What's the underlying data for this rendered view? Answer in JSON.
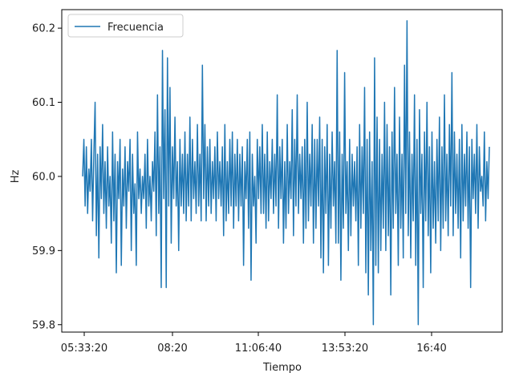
{
  "chart_data": {
    "type": "line",
    "title": "",
    "xlabel": "Tiempo",
    "ylabel": "Hz",
    "ylim": [
      59.79,
      60.225
    ],
    "x_tick_labels": [
      "05:33:20",
      "08:20",
      "11:06:40",
      "13:53:20",
      "16:40"
    ],
    "y_ticks": [
      59.8,
      59.9,
      60.0,
      60.1,
      60.2
    ],
    "y_tick_labels": [
      "59.8",
      "59.9",
      "60.0",
      "60.1",
      "60.2"
    ],
    "legend": "top-left",
    "grid": false,
    "series": [
      {
        "name": "Frecuencia",
        "color": "#1f77b4",
        "values": [
          60.0,
          60.05,
          59.96,
          60.04,
          59.95,
          60.01,
          59.98,
          60.05,
          59.94,
          60.03,
          60.1,
          59.92,
          60.03,
          59.89,
          60.04,
          59.97,
          60.07,
          59.95,
          60.02,
          59.93,
          60.04,
          59.96,
          60.0,
          59.91,
          60.06,
          59.94,
          60.03,
          59.87,
          60.02,
          59.97,
          60.05,
          59.88,
          60.01,
          59.96,
          60.04,
          59.93,
          60.02,
          59.98,
          60.05,
          59.9,
          60.03,
          59.95,
          59.99,
          59.88,
          60.06,
          59.97,
          60.01,
          59.95,
          60.0,
          59.97,
          60.03,
          59.93,
          60.05,
          59.96,
          60.0,
          59.94,
          60.02,
          59.98,
          60.06,
          59.92,
          60.11,
          59.95,
          60.04,
          59.85,
          60.17,
          59.97,
          60.09,
          59.85,
          60.16,
          59.96,
          60.12,
          59.91,
          60.04,
          59.97,
          60.08,
          59.96,
          60.02,
          59.9,
          60.05,
          59.96,
          60.03,
          59.95,
          60.06,
          59.94,
          60.03,
          59.96,
          60.08,
          59.94,
          60.05,
          59.97,
          60.02,
          59.95,
          60.07,
          59.96,
          60.03,
          59.94,
          60.15,
          59.97,
          60.07,
          59.94,
          60.04,
          59.96,
          60.05,
          59.95,
          60.02,
          59.97,
          60.04,
          59.94,
          60.06,
          59.97,
          60.02,
          59.96,
          60.04,
          59.92,
          60.07,
          59.94,
          60.02,
          59.95,
          60.05,
          59.96,
          60.06,
          59.93,
          60.03,
          59.96,
          60.05,
          59.94,
          60.03,
          59.96,
          60.04,
          59.88,
          60.02,
          59.97,
          60.05,
          59.93,
          60.06,
          59.86,
          60.03,
          59.96,
          60.0,
          59.91,
          60.05,
          59.97,
          60.04,
          59.95,
          60.07,
          59.95,
          60.03,
          59.93,
          60.06,
          59.94,
          60.02,
          59.97,
          60.05,
          59.95,
          60.03,
          59.96,
          60.11,
          59.93,
          60.04,
          59.97,
          60.05,
          59.91,
          60.02,
          59.93,
          60.07,
          59.95,
          60.02,
          59.97,
          60.09,
          59.92,
          60.05,
          59.96,
          60.11,
          59.95,
          60.03,
          59.97,
          60.04,
          59.91,
          60.05,
          59.93,
          60.1,
          59.94,
          60.03,
          59.96,
          60.07,
          59.91,
          60.05,
          59.93,
          60.05,
          59.96,
          60.08,
          59.89,
          60.05,
          59.87,
          60.04,
          59.95,
          60.07,
          59.88,
          60.03,
          59.93,
          60.06,
          59.96,
          60.02,
          59.91,
          60.17,
          59.91,
          60.06,
          59.86,
          60.03,
          59.93,
          60.14,
          59.95,
          60.02,
          59.9,
          60.05,
          59.92,
          60.03,
          59.96,
          60.02,
          59.94,
          60.04,
          59.88,
          60.07,
          59.93,
          60.04,
          59.95,
          60.12,
          59.87,
          60.05,
          59.84,
          60.06,
          59.9,
          60.02,
          59.8,
          60.16,
          59.88,
          60.08,
          59.87,
          60.05,
          59.9,
          60.03,
          59.93,
          60.1,
          59.9,
          60.07,
          59.92,
          60.04,
          59.84,
          60.06,
          59.93,
          60.12,
          59.95,
          60.03,
          59.88,
          60.08,
          59.93,
          60.03,
          59.89,
          60.15,
          59.95,
          60.21,
          59.92,
          60.06,
          59.89,
          60.03,
          59.94,
          60.11,
          59.88,
          60.05,
          59.8,
          60.09,
          59.95,
          60.03,
          59.85,
          60.06,
          59.94,
          60.1,
          59.92,
          60.04,
          59.87,
          60.06,
          59.93,
          60.02,
          59.91,
          60.05,
          59.94,
          60.08,
          59.9,
          60.04,
          59.93,
          60.11,
          59.94,
          60.03,
          59.92,
          60.07,
          59.96,
          60.14,
          59.92,
          60.06,
          59.95,
          60.03,
          59.93,
          60.05,
          59.89,
          60.07,
          59.94,
          60.03,
          59.96,
          60.06,
          59.93,
          60.04,
          59.85,
          60.05,
          59.97,
          60.03,
          59.95,
          60.07,
          59.93,
          60.04,
          59.98,
          60.0,
          59.96,
          60.06,
          59.94,
          60.02,
          59.97,
          60.04
        ]
      }
    ]
  }
}
